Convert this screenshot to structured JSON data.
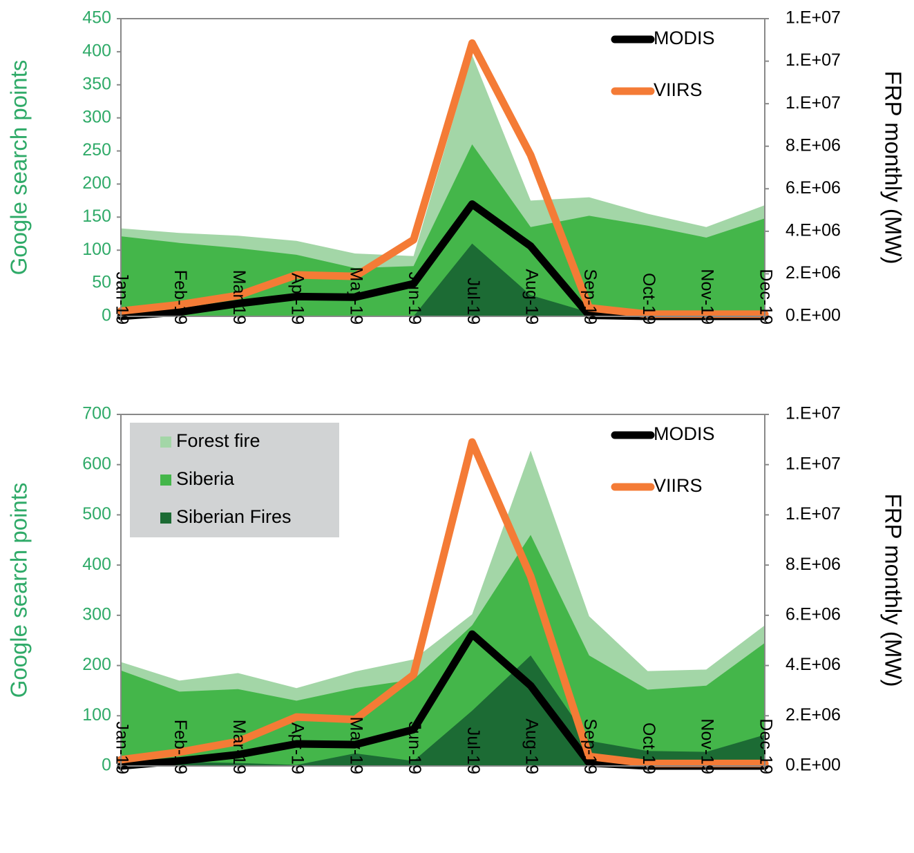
{
  "chart_data": [
    {
      "type": "area",
      "categories": [
        "Jan-19",
        "Feb-19",
        "Mar-19",
        "Apr-19",
        "May-19",
        "Jun-19",
        "Jul-19",
        "Aug-19",
        "Sep-19",
        "Oct-19",
        "Nov-19",
        "Dec-19"
      ],
      "ylabel": "Google search points",
      "y2label": "FRP monthly (MW)",
      "ylim": [
        0,
        450
      ],
      "yticks": [
        "0",
        "50",
        "100",
        "150",
        "200",
        "250",
        "300",
        "350",
        "400",
        "450"
      ],
      "y2lim": [
        0,
        14000000
      ],
      "y2ticks": [
        "0.E+00",
        "2.E+06",
        "4.E+06",
        "6.E+06",
        "8.E+06",
        "1.E+07",
        "1.E+07",
        "1.E+07"
      ],
      "series": [
        {
          "name": "Forest fire",
          "axis": "left",
          "kind": "area",
          "color": "#a3d6a7",
          "values": [
            133,
            126,
            122,
            114,
            95,
            91,
            395,
            175,
            180,
            155,
            135,
            168
          ]
        },
        {
          "name": "Siberia",
          "axis": "left",
          "kind": "area",
          "color": "#44b64a",
          "values": [
            121,
            111,
            103,
            93,
            73,
            76,
            260,
            135,
            152,
            137,
            119,
            148
          ]
        },
        {
          "name": "Siberian Fires",
          "axis": "left",
          "kind": "area",
          "color": "#1c6b34",
          "values": [
            0,
            0,
            0,
            0,
            0,
            0,
            110,
            32,
            6,
            0,
            0,
            0
          ]
        },
        {
          "name": "MODIS",
          "axis": "right",
          "kind": "line",
          "color": "#000000",
          "values": [
            0,
            200000,
            600000,
            930000,
            900000,
            1530000,
            5280000,
            3300000,
            50000,
            0,
            0,
            0
          ]
        },
        {
          "name": "VIIRS",
          "axis": "right",
          "kind": "line",
          "color": "#f47b36",
          "values": [
            250000,
            550000,
            980000,
            1950000,
            1880000,
            3600000,
            12850000,
            7580000,
            400000,
            100000,
            100000,
            100000
          ]
        }
      ],
      "legend": {
        "position": "top-right",
        "entries": [
          "MODIS",
          "VIIRS"
        ]
      }
    },
    {
      "type": "area",
      "categories": [
        "Jan-19",
        "Feb-19",
        "Mar-19",
        "Apr-19",
        "May-19",
        "Jun-19",
        "Jul-19",
        "Aug-19",
        "Sep-19",
        "Oct-19",
        "Nov-19",
        "Dec-19"
      ],
      "ylabel": "Google search points",
      "y2label": "FRP monthly (MW)",
      "ylim": [
        0,
        700
      ],
      "yticks": [
        "0",
        "100",
        "200",
        "300",
        "400",
        "500",
        "600",
        "700"
      ],
      "y2lim": [
        0,
        14000000
      ],
      "y2ticks": [
        "0.E+00",
        "2.E+06",
        "4.E+06",
        "6.E+06",
        "8.E+06",
        "1.E+07",
        "1.E+07",
        "1.E+07"
      ],
      "series": [
        {
          "name": "Forest fire",
          "axis": "left",
          "kind": "area",
          "color": "#a3d6a7",
          "values": [
            207,
            170,
            185,
            155,
            188,
            212,
            302,
            628,
            298,
            189,
            192,
            280
          ]
        },
        {
          "name": "Siberia",
          "axis": "left",
          "kind": "area",
          "color": "#44b64a",
          "values": [
            190,
            148,
            153,
            130,
            155,
            172,
            280,
            460,
            220,
            152,
            160,
            245
          ]
        },
        {
          "name": "Siberian Fires",
          "axis": "left",
          "kind": "area",
          "color": "#1c6b34",
          "values": [
            2,
            8,
            6,
            2,
            25,
            10,
            110,
            220,
            50,
            30,
            28,
            62
          ]
        },
        {
          "name": "MODIS",
          "axis": "right",
          "kind": "line",
          "color": "#000000",
          "values": [
            0,
            200000,
            450000,
            880000,
            850000,
            1450000,
            5250000,
            3200000,
            120000,
            0,
            0,
            0
          ]
        },
        {
          "name": "VIIRS",
          "axis": "right",
          "kind": "line",
          "color": "#f47b36",
          "values": [
            250000,
            550000,
            970000,
            1950000,
            1850000,
            3630000,
            12900000,
            7550000,
            380000,
            100000,
            100000,
            100000
          ]
        }
      ],
      "legend": {
        "position": "top-left",
        "entries": [
          "Forest fire",
          "Siberia",
          "Siberian Fires"
        ],
        "entries_right": [
          "MODIS",
          "VIIRS"
        ]
      }
    }
  ],
  "colors": {
    "left_axis_text": "#2faa68",
    "axis_line": "#888888",
    "legend_box": "#d1d3d4"
  }
}
